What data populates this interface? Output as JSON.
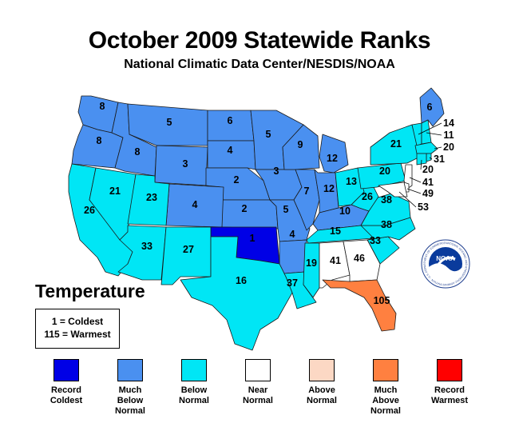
{
  "title": "October 2009 Statewide Ranks",
  "subtitle": "National Climatic Data Center/NESDIS/NOAA",
  "map_label": "Temperature",
  "key": {
    "coldest": "1 = Coldest",
    "warmest": "115 = Warmest"
  },
  "logo": {
    "text": "NOAA",
    "ring_text": "NATIONAL OCEANIC AND ATMOSPHERIC ADMINISTRATION · U.S. DEPARTMENT OF COMMERCE"
  },
  "colors": {
    "record_coldest": "#0000e6",
    "much_below_normal": "#4a90f0",
    "below_normal": "#00e6f5",
    "near_normal": "#ffffff",
    "above_normal": "#fcd8c4",
    "much_above_normal": "#ff8040",
    "record_warmest": "#ff0000"
  },
  "legend": [
    {
      "label": "Record\nColdest",
      "color": "#0000e6"
    },
    {
      "label": "Much\nBelow\nNormal",
      "color": "#4a90f0"
    },
    {
      "label": "Below\nNormal",
      "color": "#00e6f5"
    },
    {
      "label": "Near\nNormal",
      "color": "#ffffff"
    },
    {
      "label": "Above\nNormal",
      "color": "#fcd8c4"
    },
    {
      "label": "Much\nAbove\nNormal",
      "color": "#ff8040"
    },
    {
      "label": "Record\nWarmest",
      "color": "#ff0000"
    }
  ],
  "chart_data": {
    "type": "choropleth",
    "states": [
      {
        "state": "Washington",
        "rank": "8",
        "category": "much_below_normal"
      },
      {
        "state": "Oregon",
        "rank": "8",
        "category": "much_below_normal"
      },
      {
        "state": "Idaho",
        "rank": "8",
        "category": "much_below_normal"
      },
      {
        "state": "Montana",
        "rank": "5",
        "category": "much_below_normal"
      },
      {
        "state": "Wyoming",
        "rank": "3",
        "category": "much_below_normal"
      },
      {
        "state": "North Dakota",
        "rank": "6",
        "category": "much_below_normal"
      },
      {
        "state": "South Dakota",
        "rank": "4",
        "category": "much_below_normal"
      },
      {
        "state": "Nebraska",
        "rank": "2",
        "category": "much_below_normal"
      },
      {
        "state": "Kansas",
        "rank": "2",
        "category": "much_below_normal"
      },
      {
        "state": "Colorado",
        "rank": "4",
        "category": "much_below_normal"
      },
      {
        "state": "Minnesota",
        "rank": "5",
        "category": "much_below_normal"
      },
      {
        "state": "Iowa",
        "rank": "3",
        "category": "much_below_normal"
      },
      {
        "state": "Missouri",
        "rank": "5",
        "category": "much_below_normal"
      },
      {
        "state": "Arkansas",
        "rank": "4",
        "category": "much_below_normal"
      },
      {
        "state": "Wisconsin",
        "rank": "9",
        "category": "much_below_normal"
      },
      {
        "state": "Illinois",
        "rank": "7",
        "category": "much_below_normal"
      },
      {
        "state": "Michigan",
        "rank": "12",
        "category": "much_below_normal"
      },
      {
        "state": "Indiana",
        "rank": "12",
        "category": "much_below_normal"
      },
      {
        "state": "Kentucky",
        "rank": "10",
        "category": "much_below_normal"
      },
      {
        "state": "Maine",
        "rank": "6",
        "category": "much_below_normal"
      },
      {
        "state": "Oklahoma",
        "rank": "1",
        "category": "record_coldest"
      },
      {
        "state": "California",
        "rank": "26",
        "category": "below_normal"
      },
      {
        "state": "Nevada",
        "rank": "21",
        "category": "below_normal"
      },
      {
        "state": "Utah",
        "rank": "23",
        "category": "below_normal"
      },
      {
        "state": "Arizona",
        "rank": "33",
        "category": "below_normal"
      },
      {
        "state": "New Mexico",
        "rank": "27",
        "category": "below_normal"
      },
      {
        "state": "Texas",
        "rank": "16",
        "category": "below_normal"
      },
      {
        "state": "Louisiana",
        "rank": "37",
        "category": "below_normal"
      },
      {
        "state": "Mississippi",
        "rank": "19",
        "category": "below_normal"
      },
      {
        "state": "Tennessee",
        "rank": "15",
        "category": "below_normal"
      },
      {
        "state": "South Carolina",
        "rank": "33",
        "category": "below_normal"
      },
      {
        "state": "North Carolina",
        "rank": "38",
        "category": "below_normal"
      },
      {
        "state": "Virginia",
        "rank": "38",
        "category": "below_normal"
      },
      {
        "state": "West Virginia",
        "rank": "26",
        "category": "below_normal"
      },
      {
        "state": "Ohio",
        "rank": "13",
        "category": "below_normal"
      },
      {
        "state": "Pennsylvania",
        "rank": "20",
        "category": "below_normal"
      },
      {
        "state": "New York",
        "rank": "21",
        "category": "below_normal"
      },
      {
        "state": "Vermont",
        "rank": "14",
        "category": "below_normal"
      },
      {
        "state": "New Hampshire",
        "rank": "11",
        "category": "below_normal"
      },
      {
        "state": "Massachusetts",
        "rank": "20",
        "category": "below_normal"
      },
      {
        "state": "Rhode Island",
        "rank": "31",
        "category": "below_normal"
      },
      {
        "state": "Connecticut",
        "rank": "20",
        "category": "below_normal"
      },
      {
        "state": "New Jersey",
        "rank": "41",
        "category": "near_normal"
      },
      {
        "state": "Delaware",
        "rank": "49",
        "category": "near_normal"
      },
      {
        "state": "Maryland",
        "rank": "53",
        "category": "near_normal"
      },
      {
        "state": "Alabama",
        "rank": "41",
        "category": "near_normal"
      },
      {
        "state": "Georgia",
        "rank": "46",
        "category": "near_normal"
      },
      {
        "state": "Florida",
        "rank": "105",
        "category": "much_above_normal"
      }
    ]
  }
}
